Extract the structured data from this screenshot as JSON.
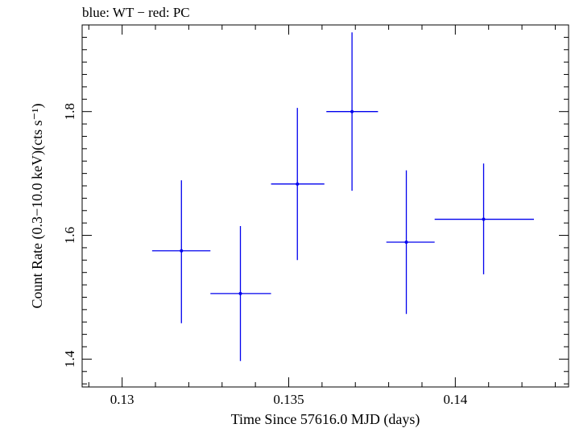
{
  "chart_data": {
    "type": "scatter",
    "title": "blue: WT − red: PC",
    "xlabel": "Time Since 57616.0 MJD (days)",
    "ylabel": "Count Rate (0.3−10.0 keV)(cts s⁻¹)",
    "xlim": [
      0.1288,
      0.1434
    ],
    "ylim": [
      1.355,
      1.94
    ],
    "x_ticks": [
      0.13,
      0.135,
      0.14
    ],
    "x_tick_labels": [
      "0.13",
      "0.135",
      "0.14"
    ],
    "y_ticks": [
      1.4,
      1.6,
      1.8
    ],
    "y_tick_labels": [
      "1.4",
      "1.6",
      "1.8"
    ],
    "grid": false,
    "series": [
      {
        "color": "#0000ee",
        "points": [
          {
            "x": 0.13178,
            "xerr_lo": 0.1309,
            "xerr_hi": 0.13265,
            "y": 1.575,
            "yerr_lo": 1.458,
            "yerr_hi": 1.689
          },
          {
            "x": 0.13355,
            "xerr_lo": 0.13265,
            "xerr_hi": 0.13447,
            "y": 1.506,
            "yerr_lo": 1.397,
            "yerr_hi": 1.615
          },
          {
            "x": 0.13526,
            "xerr_lo": 0.13447,
            "xerr_hi": 0.13607,
            "y": 1.683,
            "yerr_lo": 1.56,
            "yerr_hi": 1.806
          },
          {
            "x": 0.1369,
            "xerr_lo": 0.13613,
            "xerr_hi": 0.13768,
            "y": 1.8,
            "yerr_lo": 1.672,
            "yerr_hi": 1.928
          },
          {
            "x": 0.13853,
            "xerr_lo": 0.13793,
            "xerr_hi": 0.13938,
            "y": 1.589,
            "yerr_lo": 1.473,
            "yerr_hi": 1.705
          },
          {
            "x": 0.14085,
            "xerr_lo": 0.13938,
            "xerr_hi": 0.14236,
            "y": 1.626,
            "yerr_lo": 1.537,
            "yerr_hi": 1.716
          }
        ]
      }
    ]
  }
}
